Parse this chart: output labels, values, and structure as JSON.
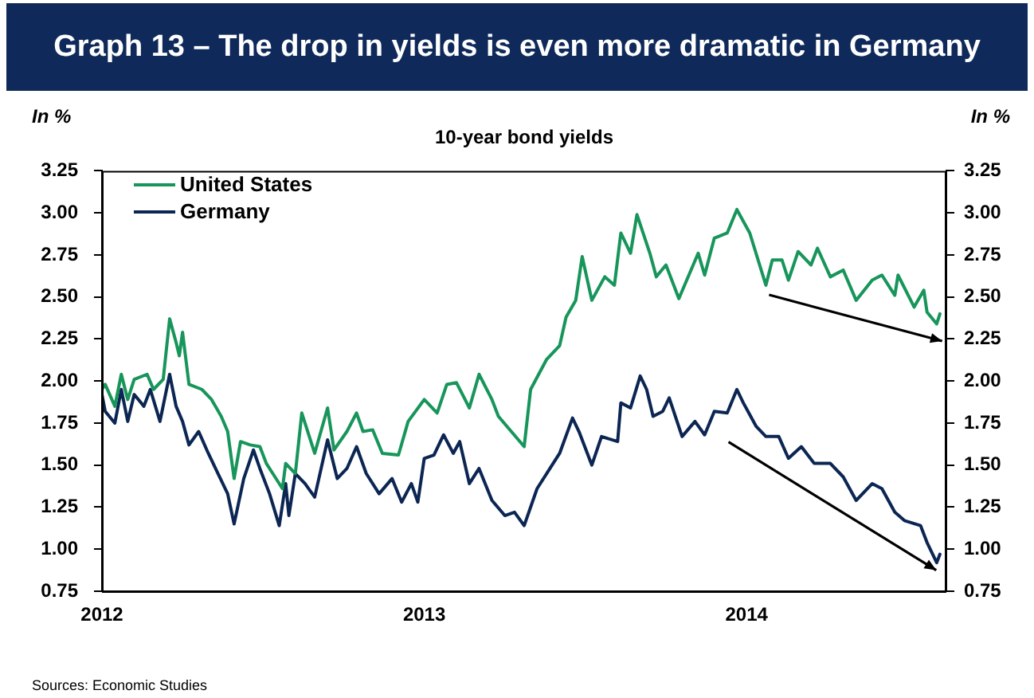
{
  "chart_data": {
    "type": "line",
    "title": "Graph 13 – The drop in yields is even more dramatic in Germany",
    "subtitle": "10-year bond yields",
    "ylabel": "In %",
    "y2label": "In %",
    "annotations": [
      "Sources: Economic Studies"
    ],
    "xlim": [
      2012,
      2014.62
    ],
    "xticks": [
      2012,
      2013,
      2014
    ],
    "ylim": [
      0.75,
      3.25
    ],
    "yticks": [
      0.75,
      {
        "value": 1,
        "label": "1.00"
      },
      1.25,
      {
        "value": 1.5,
        "label": "1.50"
      },
      1.75,
      {
        "value": 2,
        "label": "2.00"
      },
      2.25,
      {
        "value": 2.5,
        "label": "2.50"
      },
      2.75,
      {
        "value": 3,
        "label": "3.00"
      },
      3.25
    ],
    "y2lim": [
      0.75,
      3.25
    ],
    "y2ticks": [
      0.75,
      {
        "value": 1,
        "label": "1.00"
      },
      1.25,
      {
        "value": 1.5,
        "label": "1.50"
      },
      1.75,
      {
        "value": 2,
        "label": "2.00"
      },
      2.25,
      {
        "value": 2.5,
        "label": "2.50"
      },
      2.75,
      {
        "value": 3,
        "label": "3.00"
      },
      3.25
    ],
    "grid": false,
    "legend": "top left",
    "marker": "none",
    "line_style": "solid",
    "series": [
      {
        "name": "United States",
        "color": "#17955a",
        "x": [
          2012.0,
          2012.01,
          2012.04,
          2012.06,
          2012.08,
          2012.1,
          2012.14,
          2012.16,
          2012.19,
          2012.21,
          2012.23,
          2012.24,
          2012.25,
          2012.27,
          2012.31,
          2012.34,
          2012.37,
          2012.39,
          2012.41,
          2012.43,
          2012.46,
          2012.49,
          2012.51,
          2012.53,
          2012.56,
          2012.57,
          2012.6,
          2012.62,
          2012.66,
          2012.7,
          2012.72,
          2012.76,
          2012.79,
          2012.81,
          2012.84,
          2012.87,
          2012.92,
          2012.95,
          2013.0,
          2013.04,
          2013.07,
          2013.1,
          2013.14,
          2013.17,
          2013.21,
          2013.23,
          2013.27,
          2013.31,
          2013.33,
          2013.38,
          2013.42,
          2013.44,
          2013.47,
          2013.49,
          2013.52,
          2013.56,
          2013.59,
          2013.61,
          2013.64,
          2013.66,
          2013.7,
          2013.72,
          2013.75,
          2013.79,
          2013.85,
          2013.87,
          2013.9,
          2013.94,
          2013.97,
          2014.01,
          2014.06,
          2014.08,
          2014.11,
          2014.13,
          2014.16,
          2014.2,
          2014.22,
          2014.26,
          2014.3,
          2014.34,
          2014.39,
          2014.42,
          2014.46,
          2014.47,
          2014.52,
          2014.55,
          2014.56,
          2014.59,
          2014.6
        ],
        "values": [
          1.95,
          1.98,
          1.85,
          2.04,
          1.89,
          2.01,
          2.04,
          1.95,
          2.01,
          2.37,
          2.23,
          2.15,
          2.29,
          1.98,
          1.95,
          1.89,
          1.79,
          1.7,
          1.42,
          1.64,
          1.62,
          1.61,
          1.51,
          1.45,
          1.36,
          1.51,
          1.45,
          1.81,
          1.57,
          1.84,
          1.59,
          1.7,
          1.81,
          1.7,
          1.71,
          1.57,
          1.56,
          1.76,
          1.89,
          1.81,
          1.98,
          1.99,
          1.84,
          2.04,
          1.89,
          1.79,
          1.7,
          1.61,
          1.95,
          2.13,
          2.21,
          2.38,
          2.48,
          2.74,
          2.48,
          2.62,
          2.57,
          2.88,
          2.76,
          2.99,
          2.76,
          2.62,
          2.69,
          2.49,
          2.76,
          2.63,
          2.85,
          2.88,
          3.02,
          2.88,
          2.57,
          2.72,
          2.72,
          2.6,
          2.77,
          2.69,
          2.79,
          2.62,
          2.66,
          2.48,
          2.6,
          2.63,
          2.51,
          2.63,
          2.44,
          2.54,
          2.41,
          2.34,
          2.4
        ]
      },
      {
        "name": "Germany",
        "color": "#0c2653",
        "x": [
          2012.0,
          2012.01,
          2012.04,
          2012.06,
          2012.08,
          2012.1,
          2012.13,
          2012.15,
          2012.18,
          2012.21,
          2012.23,
          2012.25,
          2012.27,
          2012.3,
          2012.33,
          2012.36,
          2012.39,
          2012.41,
          2012.44,
          2012.47,
          2012.49,
          2012.52,
          2012.55,
          2012.57,
          2012.58,
          2012.6,
          2012.63,
          2012.66,
          2012.7,
          2012.73,
          2012.76,
          2012.79,
          2012.82,
          2012.86,
          2012.9,
          2012.93,
          2012.96,
          2012.98,
          2013.0,
          2013.03,
          2013.06,
          2013.09,
          2013.11,
          2013.14,
          2013.17,
          2013.21,
          2013.25,
          2013.28,
          2013.31,
          2013.35,
          2013.39,
          2013.42,
          2013.46,
          2013.48,
          2013.52,
          2013.55,
          2013.6,
          2013.61,
          2013.64,
          2013.67,
          2013.69,
          2013.71,
          2013.74,
          2013.76,
          2013.8,
          2013.84,
          2013.87,
          2013.9,
          2013.94,
          2013.97,
          2013.99,
          2014.03,
          2014.06,
          2014.1,
          2014.13,
          2014.17,
          2014.21,
          2014.26,
          2014.3,
          2014.34,
          2014.39,
          2014.42,
          2014.46,
          2014.49,
          2014.54,
          2014.56,
          2014.59,
          2014.6
        ],
        "values": [
          1.92,
          1.82,
          1.75,
          1.95,
          1.76,
          1.92,
          1.85,
          1.95,
          1.76,
          2.04,
          1.85,
          1.76,
          1.62,
          1.7,
          1.57,
          1.45,
          1.33,
          1.15,
          1.42,
          1.59,
          1.48,
          1.33,
          1.14,
          1.39,
          1.2,
          1.45,
          1.39,
          1.31,
          1.65,
          1.42,
          1.48,
          1.61,
          1.45,
          1.33,
          1.42,
          1.28,
          1.39,
          1.28,
          1.54,
          1.56,
          1.68,
          1.57,
          1.64,
          1.39,
          1.48,
          1.29,
          1.2,
          1.22,
          1.14,
          1.36,
          1.48,
          1.57,
          1.78,
          1.7,
          1.5,
          1.67,
          1.64,
          1.87,
          1.84,
          2.03,
          1.95,
          1.79,
          1.82,
          1.9,
          1.67,
          1.76,
          1.68,
          1.82,
          1.81,
          1.95,
          1.87,
          1.73,
          1.67,
          1.67,
          1.54,
          1.61,
          1.51,
          1.51,
          1.43,
          1.29,
          1.39,
          1.36,
          1.22,
          1.17,
          1.14,
          1.04,
          0.92,
          0.97
        ]
      }
    ]
  }
}
